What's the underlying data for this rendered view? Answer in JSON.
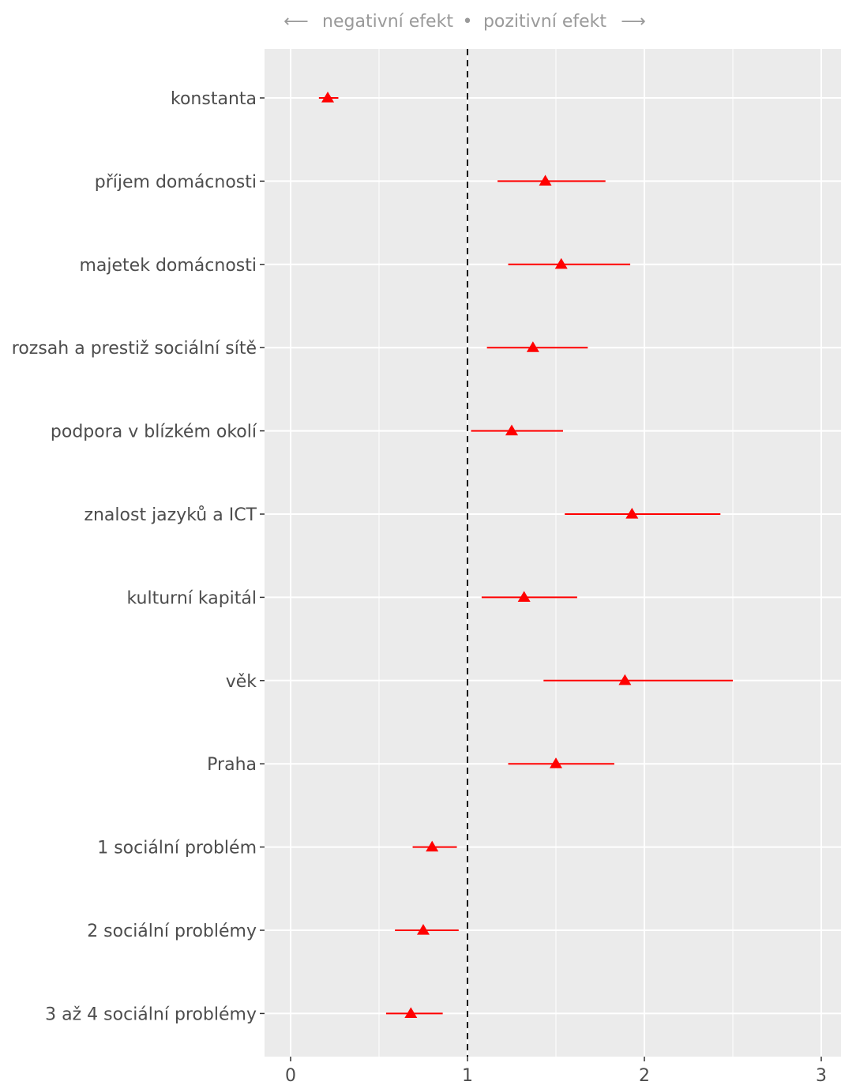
{
  "header": {
    "left_arrow": "⟵",
    "negative_label": "negativní efekt",
    "separator": "•",
    "positive_label": "pozitivní efekt",
    "right_arrow": "⟶"
  },
  "chart_data": {
    "type": "scatter",
    "title": "",
    "xlabel": "",
    "ylabel": "",
    "xlim": [
      -0.15,
      3.05
    ],
    "x_ticks": [
      0,
      1,
      2,
      3
    ],
    "reference_line": 1,
    "grid": true,
    "marker": "triangle",
    "color": "#ff0000",
    "panel_bg": "#ebebeb",
    "categories": [
      "konstanta",
      "příjem domácnosti",
      "majetek domácnosti",
      "rozsah a prestiž sociální sítě",
      "podpora v blízkém okolí",
      "znalost jazyků a ICT",
      "kulturní kapitál",
      "věk",
      "Praha",
      "1 sociální problém",
      "2 sociální problémy",
      "3 až 4 sociální problémy"
    ],
    "estimates": [
      0.21,
      1.44,
      1.53,
      1.37,
      1.25,
      1.93,
      1.32,
      1.89,
      1.5,
      0.8,
      0.75,
      0.68
    ],
    "lower": [
      0.16,
      1.17,
      1.23,
      1.11,
      1.02,
      1.55,
      1.08,
      1.43,
      1.23,
      0.69,
      0.59,
      0.54
    ],
    "upper": [
      0.27,
      1.78,
      1.92,
      1.68,
      1.54,
      2.43,
      1.62,
      2.5,
      1.83,
      0.94,
      0.95,
      0.86
    ]
  }
}
